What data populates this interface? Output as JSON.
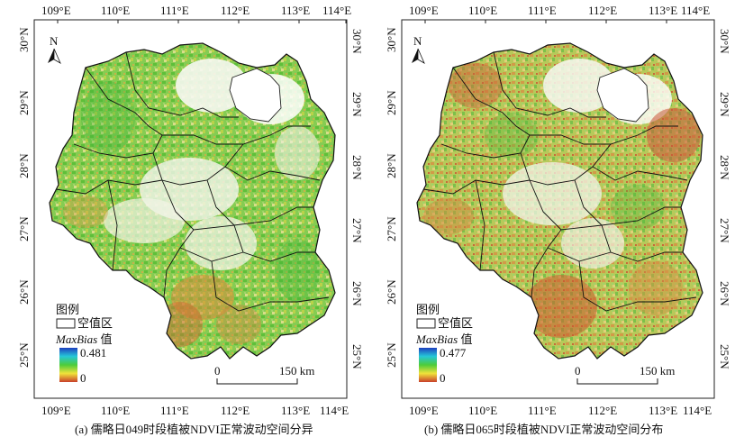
{
  "panels": [
    {
      "caption": "(a) 儒略日049时段植被NDVI正常波动空间分异",
      "lon_ticks": [
        "109°E",
        "110°E",
        "111°E",
        "112°E",
        "113°E",
        "114°E"
      ],
      "lat_ticks": [
        "30°N",
        "29°N",
        "28°N",
        "27°N",
        "26°N",
        "25°N"
      ],
      "north_label": "N",
      "legend": {
        "title": "图例",
        "null_label": "空值区",
        "value_title_italic": "MaxBias",
        "value_title_suffix": " 值",
        "max_value": "0.481",
        "min_value": "0"
      },
      "scale_bar": {
        "start": "0",
        "end": "150 km"
      }
    },
    {
      "caption": "(b) 儒略日065时段植被NDVI正常波动空间分布",
      "lon_ticks": [
        "109°E",
        "110°E",
        "111°E",
        "112°E",
        "113°E",
        "114°E"
      ],
      "lat_ticks": [
        "30°N",
        "29°N",
        "28°N",
        "27°N",
        "26°N",
        "25°N"
      ],
      "north_label": "N",
      "legend": {
        "title": "图例",
        "null_label": "空值区",
        "value_title_italic": "MaxBias",
        "value_title_suffix": " 值",
        "max_value": "0.477",
        "min_value": "0"
      },
      "scale_bar": {
        "start": "0",
        "end": "150 km"
      }
    }
  ],
  "colors": {
    "ramp_top": "#1d3fbf",
    "ramp_mid_high": "#25c7d8",
    "ramp_mid": "#4ccc3a",
    "ramp_mid_low": "#f0e23a",
    "ramp_bottom": "#c9402a",
    "null_area": "#ffffff",
    "frame": "#222222"
  }
}
